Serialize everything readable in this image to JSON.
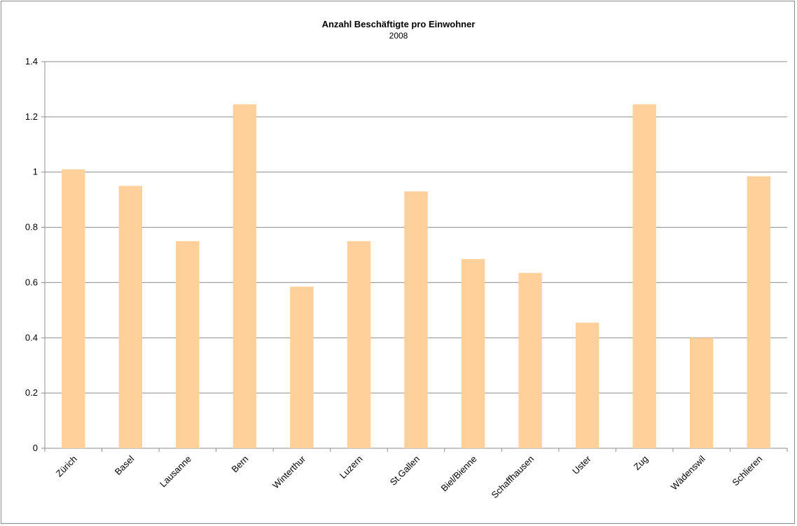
{
  "chart_data": {
    "type": "bar",
    "title": "Anzahl Beschäftigte pro Einwohner",
    "subtitle": "2008",
    "categories": [
      "Zürich",
      "Basel",
      "Lausanne",
      "Bern",
      "Winterthur",
      "Luzern",
      "St.Gallen",
      "Biel/Bienne",
      "Schaffhausen",
      "Uster",
      "Zug",
      "Wädenswil",
      "Schlieren"
    ],
    "values": [
      1.01,
      0.95,
      0.75,
      1.245,
      0.585,
      0.75,
      0.93,
      0.685,
      0.635,
      0.455,
      1.245,
      0.4,
      0.985
    ],
    "yticks": [
      "0",
      "0.2",
      "0.4",
      "0.6",
      "0.8",
      "1",
      "1.2",
      "1.4"
    ],
    "ylim": [
      0,
      1.4
    ],
    "grid": true,
    "legend": "none",
    "bar_color": "#ffd09a",
    "grid_color": "#8c8c8c"
  }
}
